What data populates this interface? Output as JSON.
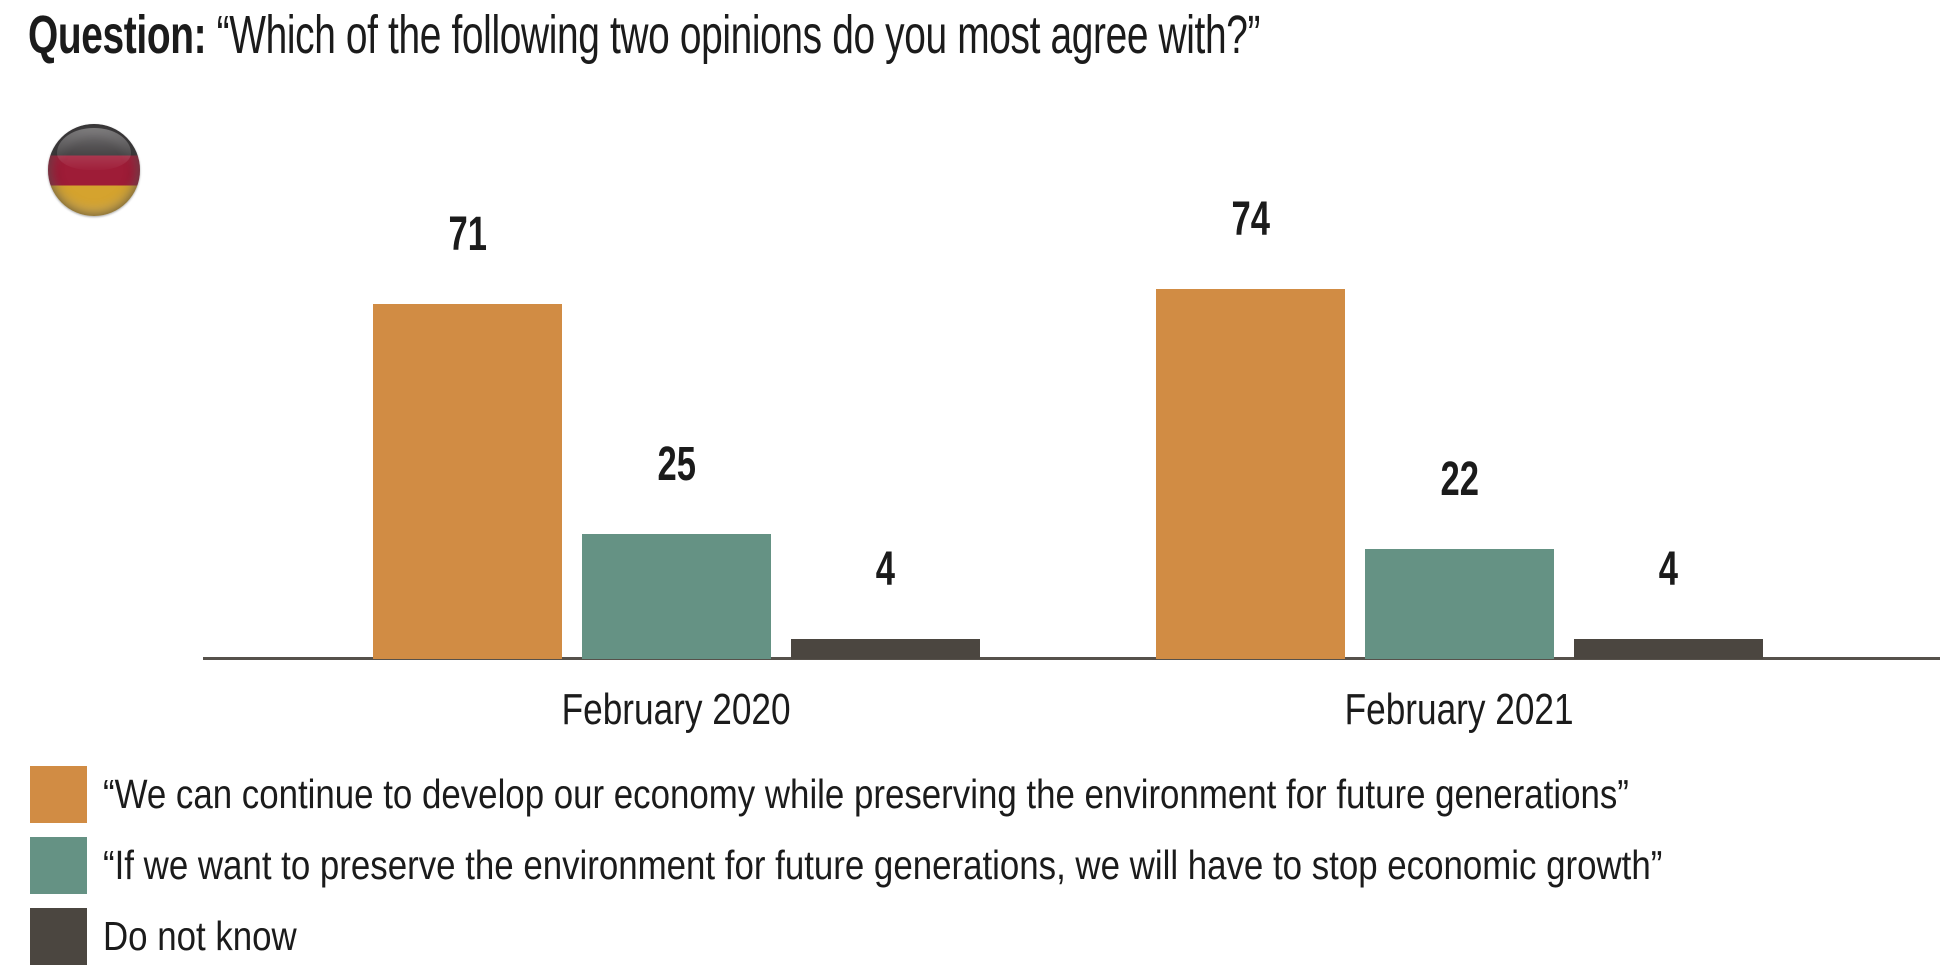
{
  "title": {
    "prefix": "Question:",
    "question": "“Which of the following two opinions do you most agree with?”"
  },
  "flag": {
    "country": "Germany",
    "colors": {
      "black": "#2d2a2c",
      "red": "#9e1c37",
      "gold": "#d5a32e"
    }
  },
  "chart_data": {
    "type": "bar",
    "categories": [
      "February 2020",
      "February 2021"
    ],
    "series": [
      {
        "name": "“We can continue to develop our economy while preserving the environment for future generations”",
        "color": "#d18c44",
        "values": [
          71,
          74
        ]
      },
      {
        "name": "“If we want to preserve the environment for future generations, we will have to stop economic growth”",
        "color": "#659284",
        "values": [
          25,
          22
        ]
      },
      {
        "name": "Do not know",
        "color": "#4b4640",
        "values": [
          4,
          4
        ]
      }
    ],
    "ylim": [
      0,
      100
    ],
    "value_labels": true,
    "grid": false,
    "legend_position": "bottom-left",
    "axis_color": "#56514b",
    "text_color": "#1b1b1b"
  }
}
